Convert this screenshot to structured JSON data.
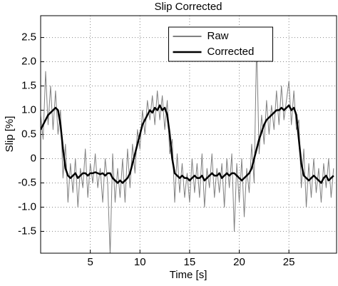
{
  "chart_data": {
    "type": "line",
    "title": "Slip Corrected",
    "xlabel": "Time [s]",
    "ylabel": "Slip [%]",
    "x": [
      0,
      0.25,
      0.5,
      0.75,
      1,
      1.25,
      1.5,
      1.75,
      2,
      2.25,
      2.5,
      2.75,
      3,
      3.25,
      3.5,
      3.75,
      4,
      4.25,
      4.5,
      4.75,
      5,
      5.25,
      5.5,
      5.75,
      6,
      6.25,
      6.5,
      6.75,
      7,
      7.25,
      7.5,
      7.75,
      8,
      8.25,
      8.5,
      8.75,
      9,
      9.25,
      9.5,
      9.75,
      10,
      10.25,
      10.5,
      10.75,
      11,
      11.25,
      11.5,
      11.75,
      12,
      12.25,
      12.5,
      12.75,
      13,
      13.25,
      13.5,
      13.75,
      14,
      14.25,
      14.5,
      14.75,
      15,
      15.25,
      15.5,
      15.75,
      16,
      16.25,
      16.5,
      16.75,
      17,
      17.25,
      17.5,
      17.75,
      18,
      18.25,
      18.5,
      18.75,
      19,
      19.25,
      19.5,
      19.75,
      20,
      20.25,
      20.5,
      20.75,
      21,
      21.25,
      21.5,
      21.75,
      22,
      22.25,
      22.5,
      22.75,
      23,
      23.25,
      23.5,
      23.75,
      24,
      24.25,
      24.5,
      24.75,
      25,
      25.25,
      25.5,
      25.75,
      26,
      26.25,
      26.5,
      26.75,
      27,
      27.25,
      27.5,
      27.75,
      28,
      28.25,
      28.5,
      28.75,
      29,
      29.25,
      29.5
    ],
    "series": [
      {
        "name": "Raw",
        "color": "#808080",
        "width": 1,
        "values": [
          0.9,
          0.4,
          1.8,
          0.7,
          1.5,
          0.6,
          1.4,
          0.5,
          1.0,
          -0.4,
          0.3,
          -0.9,
          -0.1,
          -0.7,
          0.0,
          -1.0,
          -0.2,
          -0.6,
          0.2,
          -0.8,
          -0.1,
          -0.5,
          0.1,
          -0.6,
          -0.2,
          -0.9,
          0.0,
          -0.5,
          -2.0,
          0.1,
          -0.9,
          -0.2,
          -0.8,
          0.0,
          -0.9,
          0.2,
          -0.6,
          0.3,
          -0.3,
          0.6,
          0.2,
          1.0,
          0.5,
          1.2,
          0.8,
          1.3,
          0.7,
          1.4,
          0.8,
          1.3,
          0.6,
          1.2,
          0.1,
          0.4,
          -0.9,
          0.1,
          -0.7,
          -0.1,
          -0.8,
          -0.3,
          -0.9,
          0.0,
          -0.7,
          -0.1,
          -0.8,
          0.1,
          -1.0,
          -0.2,
          -0.6,
          0.1,
          -0.8,
          -0.2,
          -0.7,
          -0.1,
          -1.0,
          0.0,
          -0.6,
          0.1,
          -1.5,
          -0.1,
          -0.9,
          0.0,
          -1.2,
          -0.2,
          -0.7,
          0.3,
          -0.5,
          2.4,
          0.1,
          0.9,
          0.3,
          1.2,
          0.5,
          1.1,
          0.6,
          1.4,
          0.7,
          1.5,
          0.8,
          1.2,
          1.6,
          0.7,
          1.4,
          0.6,
          0.8,
          -0.6,
          0.2,
          -1.0,
          -0.1,
          -0.8,
          0.0,
          -0.7,
          -0.2,
          -0.9,
          -0.1,
          -0.6,
          0.0,
          -0.8,
          -0.2
        ]
      },
      {
        "name": "Corrected",
        "color": "#000000",
        "width": 2.5,
        "values": [
          0.6,
          0.7,
          0.8,
          0.9,
          0.95,
          1.0,
          1.05,
          1.0,
          0.7,
          0.2,
          -0.2,
          -0.35,
          -0.4,
          -0.35,
          -0.3,
          -0.4,
          -0.35,
          -0.3,
          -0.3,
          -0.35,
          -0.3,
          -0.3,
          -0.28,
          -0.3,
          -0.32,
          -0.3,
          -0.35,
          -0.3,
          -0.3,
          -0.4,
          -0.45,
          -0.5,
          -0.45,
          -0.5,
          -0.45,
          -0.4,
          -0.3,
          -0.1,
          0.1,
          0.3,
          0.5,
          0.7,
          0.8,
          0.9,
          1.0,
          0.95,
          1.05,
          1.0,
          1.1,
          1.0,
          1.05,
          0.9,
          0.5,
          0.0,
          -0.3,
          -0.35,
          -0.4,
          -0.35,
          -0.4,
          -0.4,
          -0.45,
          -0.4,
          -0.35,
          -0.4,
          -0.4,
          -0.35,
          -0.45,
          -0.4,
          -0.35,
          -0.3,
          -0.35,
          -0.35,
          -0.3,
          -0.4,
          -0.35,
          -0.3,
          -0.35,
          -0.3,
          -0.3,
          -0.35,
          -0.4,
          -0.45,
          -0.4,
          -0.35,
          -0.3,
          -0.2,
          0.0,
          0.2,
          0.4,
          0.55,
          0.7,
          0.8,
          0.85,
          0.9,
          0.95,
          1.0,
          1.0,
          1.05,
          1.0,
          1.05,
          1.1,
          1.0,
          1.05,
          0.9,
          0.4,
          -0.1,
          -0.35,
          -0.4,
          -0.45,
          -0.4,
          -0.35,
          -0.4,
          -0.45,
          -0.5,
          -0.4,
          -0.35,
          -0.45,
          -0.4,
          -0.35
        ]
      }
    ],
    "xlim": [
      0,
      29.8
    ],
    "xticks": [
      5,
      10,
      15,
      20,
      25
    ],
    "ylim": [
      -1.95,
      2.95
    ],
    "yticks": [
      -1.5,
      {
        "value": -1,
        "label": "-1.0"
      },
      -0.5,
      0,
      0.5,
      {
        "value": 1,
        "label": "1.0"
      },
      1.5,
      {
        "value": 2,
        "label": "2.0"
      },
      2.5
    ],
    "grid": true,
    "legend": "upper center"
  }
}
